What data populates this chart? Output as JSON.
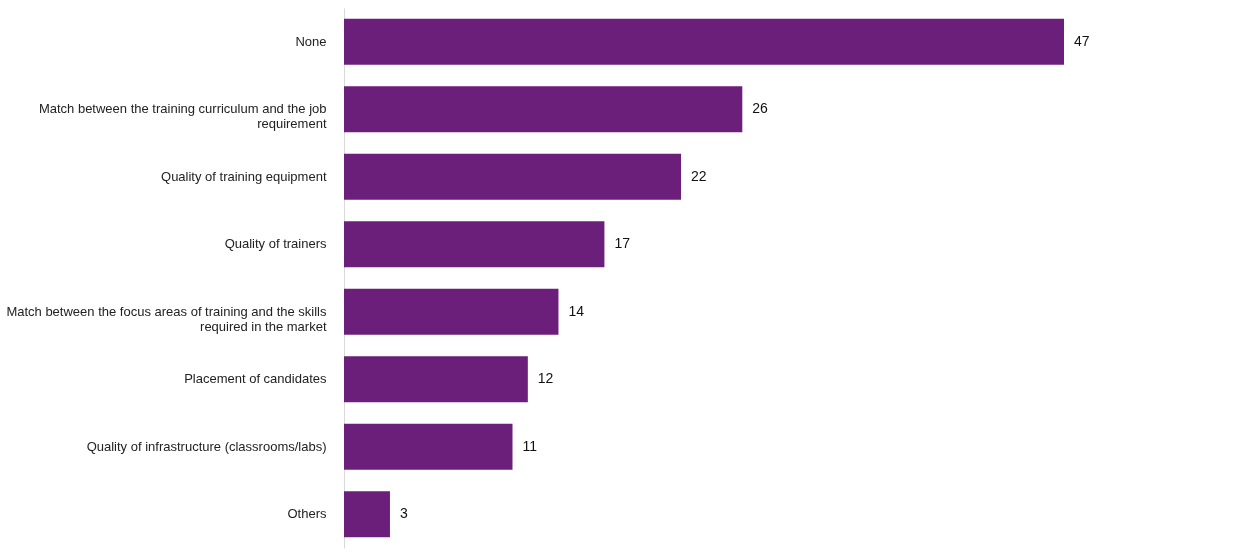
{
  "chart_data": {
    "type": "bar",
    "orientation": "horizontal",
    "color": "#6b1f7a",
    "data_labels": true,
    "grid": false,
    "categories": [
      "None",
      "Match between the training curriculum and the job requirement",
      "Quality of training equipment",
      "Quality of trainers",
      "Match between the focus areas of training and the skills required in the market",
      "Placement of candidates",
      "Quality of infrastructure (classrooms/labs)",
      "Others"
    ],
    "values": [
      47,
      26,
      22,
      17,
      14,
      12,
      11,
      3
    ]
  }
}
